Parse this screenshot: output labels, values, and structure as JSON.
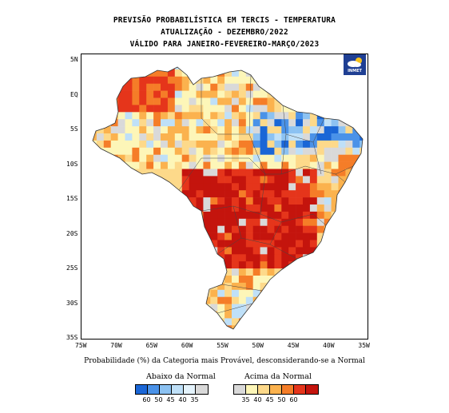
{
  "title": {
    "line1": "PREVISÃO PROBABILÍSTICA EM TERCIS - TEMPERATURA",
    "line2": "ATUALIZAÇÃO - DEZEMBRO/2022",
    "line3": "VÁLIDO PARA JANEIRO-FEVEREIRO-MARÇO/2023"
  },
  "logo": {
    "text": "INMET"
  },
  "axes": {
    "lat_labels": [
      "5N",
      "EQ",
      "5S",
      "10S",
      "15S",
      "20S",
      "25S",
      "30S",
      "35S"
    ],
    "lon_labels": [
      "75W",
      "70W",
      "65W",
      "60W",
      "55W",
      "50W",
      "45W",
      "40W",
      "35W"
    ]
  },
  "caption": "Probabilidade (%) da Categoria mais Provável, desconsiderando-se a Normal",
  "legend": {
    "below": {
      "title": "Abaixo da Normal",
      "ticks": [
        "60",
        "50",
        "45",
        "40",
        "35"
      ],
      "colors": [
        "#1a66d6",
        "#4a92e8",
        "#8cc2f2",
        "#bfe0f8",
        "#e4f3fc"
      ]
    },
    "above": {
      "title": "Acima da Normal",
      "ticks": [
        "35",
        "40",
        "45",
        "50",
        "60"
      ],
      "colors": [
        "#fdf6b8",
        "#fdd98a",
        "#fbb24e",
        "#f57d28",
        "#e5351b",
        "#c4140d"
      ]
    },
    "normal_color": "#d9d9d9"
  }
}
